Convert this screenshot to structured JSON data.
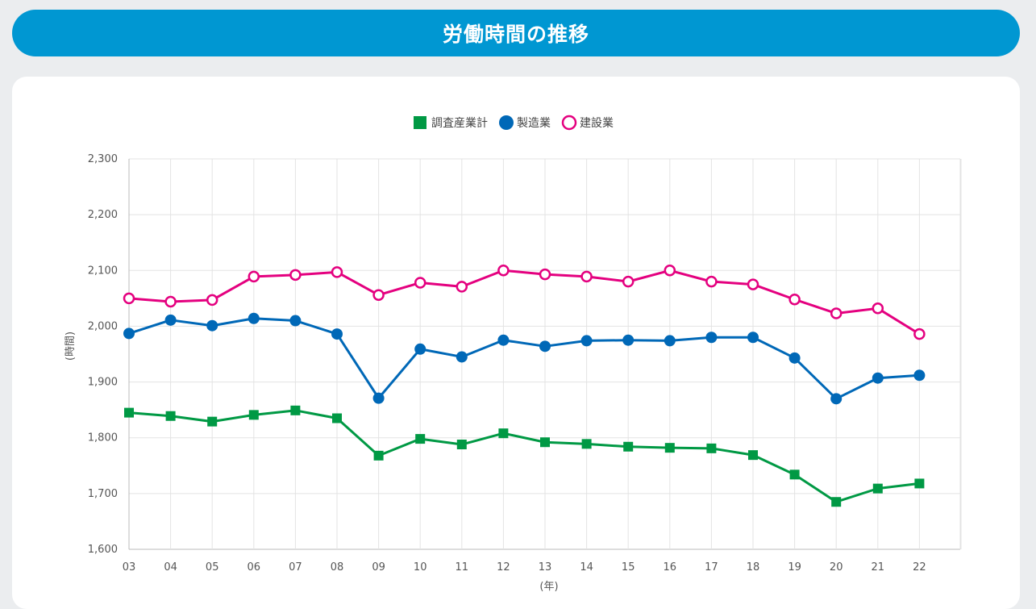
{
  "header": {
    "title": "労働時間の推移"
  },
  "colors": {
    "header_bg": "#0097d2",
    "series": [
      "#009944",
      "#0068b7",
      "#e4007f"
    ]
  },
  "chart_data": {
    "type": "line",
    "title": "",
    "xlabel": "(年)",
    "ylabel": "(時間)",
    "x": [
      "03",
      "04",
      "05",
      "06",
      "07",
      "08",
      "09",
      "10",
      "11",
      "12",
      "13",
      "14",
      "15",
      "16",
      "17",
      "18",
      "19",
      "20",
      "21",
      "22"
    ],
    "ylim": [
      1600,
      2300
    ],
    "yticks": [
      "1,600",
      "1,700",
      "1,800",
      "1,900",
      "2,000",
      "2,100",
      "2,200",
      "2,300"
    ],
    "grid": true,
    "legend_position": "top-center",
    "series": [
      {
        "name": "調査産業計",
        "marker": "filled-square",
        "color": "#009944",
        "values": [
          1845,
          1839,
          1829,
          1841,
          1849,
          1835,
          1768,
          1798,
          1788,
          1808,
          1792,
          1789,
          1784,
          1782,
          1781,
          1769,
          1734,
          1685,
          1709,
          1718
        ]
      },
      {
        "name": "製造業",
        "marker": "filled-circle",
        "color": "#0068b7",
        "values": [
          1987,
          2011,
          2001,
          2014,
          2010,
          1986,
          1871,
          1959,
          1945,
          1975,
          1964,
          1974,
          1975,
          1974,
          1980,
          1980,
          1943,
          1870,
          1907,
          1912
        ]
      },
      {
        "name": "建設業",
        "marker": "hollow-circle",
        "color": "#e4007f",
        "values": [
          2050,
          2044,
          2047,
          2089,
          2092,
          2097,
          2056,
          2078,
          2071,
          2100,
          2093,
          2089,
          2080,
          2100,
          2080,
          2075,
          2048,
          2023,
          2032,
          1986
        ]
      }
    ]
  }
}
